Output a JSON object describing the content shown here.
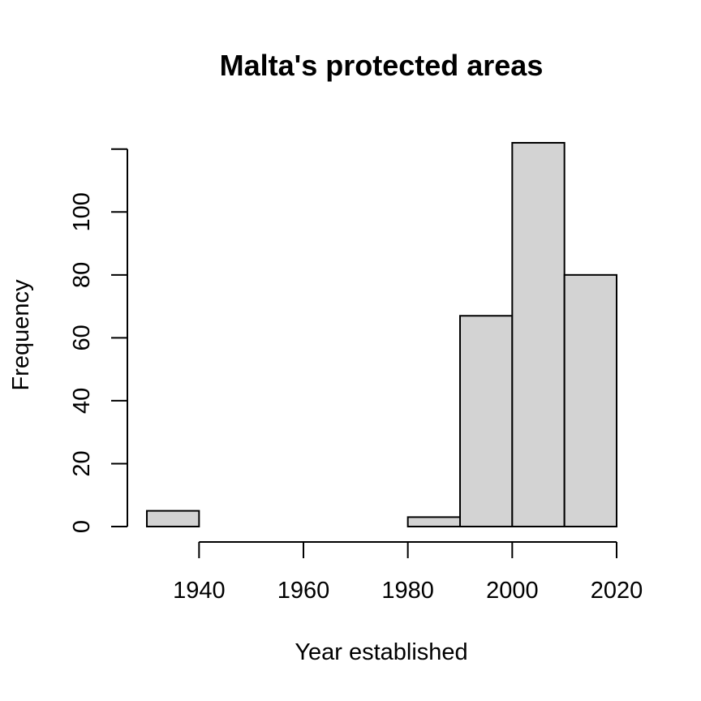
{
  "chart_data": {
    "type": "bar",
    "title": "Malta's protected areas",
    "xlabel": "Year established",
    "ylabel": "Frequency",
    "bins": [
      {
        "start": 1930,
        "end": 1940,
        "value": 5
      },
      {
        "start": 1940,
        "end": 1950,
        "value": 0
      },
      {
        "start": 1950,
        "end": 1960,
        "value": 0
      },
      {
        "start": 1960,
        "end": 1970,
        "value": 0
      },
      {
        "start": 1970,
        "end": 1980,
        "value": 0
      },
      {
        "start": 1980,
        "end": 1990,
        "value": 3
      },
      {
        "start": 1990,
        "end": 2000,
        "value": 67
      },
      {
        "start": 2000,
        "end": 2010,
        "value": 122
      },
      {
        "start": 2010,
        "end": 2020,
        "value": 80
      }
    ],
    "xlim": [
      1930,
      2020
    ],
    "ylim": [
      0,
      122
    ],
    "x_ticks": [
      1940,
      1960,
      1980,
      2000,
      2020
    ],
    "y_ticks": [
      0,
      20,
      40,
      60,
      80,
      100
    ],
    "grid": false,
    "legend": "none",
    "bar_fill": "#d3d3d3",
    "bar_stroke": "#000000"
  }
}
